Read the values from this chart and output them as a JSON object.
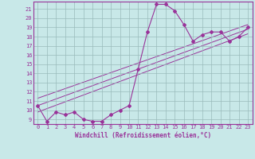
{
  "xlabel": "Windchill (Refroidissement éolien,°C)",
  "bg_color": "#c8e8e8",
  "line_color": "#993399",
  "grid_color": "#99bbbb",
  "axis_color": "#993399",
  "text_color": "#993399",
  "xlim": [
    -0.5,
    23.5
  ],
  "ylim": [
    8.5,
    21.8
  ],
  "xticks": [
    0,
    1,
    2,
    3,
    4,
    5,
    6,
    7,
    8,
    9,
    10,
    11,
    12,
    13,
    14,
    15,
    16,
    17,
    18,
    19,
    20,
    21,
    22,
    23
  ],
  "yticks": [
    9,
    10,
    11,
    12,
    13,
    14,
    15,
    16,
    17,
    18,
    19,
    20,
    21
  ],
  "curve_x": [
    0,
    1,
    2,
    3,
    4,
    5,
    6,
    7,
    8,
    9,
    10,
    11,
    12,
    13,
    14,
    15,
    16,
    17,
    18,
    19,
    20,
    21,
    22,
    23
  ],
  "curve_y": [
    10.5,
    8.8,
    9.8,
    9.5,
    9.8,
    9.0,
    8.8,
    8.8,
    9.5,
    10.0,
    10.5,
    14.5,
    18.5,
    21.5,
    21.5,
    20.8,
    19.3,
    17.5,
    18.2,
    18.5,
    18.5,
    17.5,
    18.0,
    19.0
  ],
  "diag_line1_x": [
    0,
    23
  ],
  "diag_line1_y": [
    10.5,
    18.8
  ],
  "diag_line2_x": [
    0,
    23
  ],
  "diag_line2_y": [
    11.3,
    19.3
  ],
  "diag_line3_x": [
    0,
    23
  ],
  "diag_line3_y": [
    9.8,
    18.3
  ],
  "xlabel_fontsize": 5.5,
  "tick_fontsize": 5.0
}
